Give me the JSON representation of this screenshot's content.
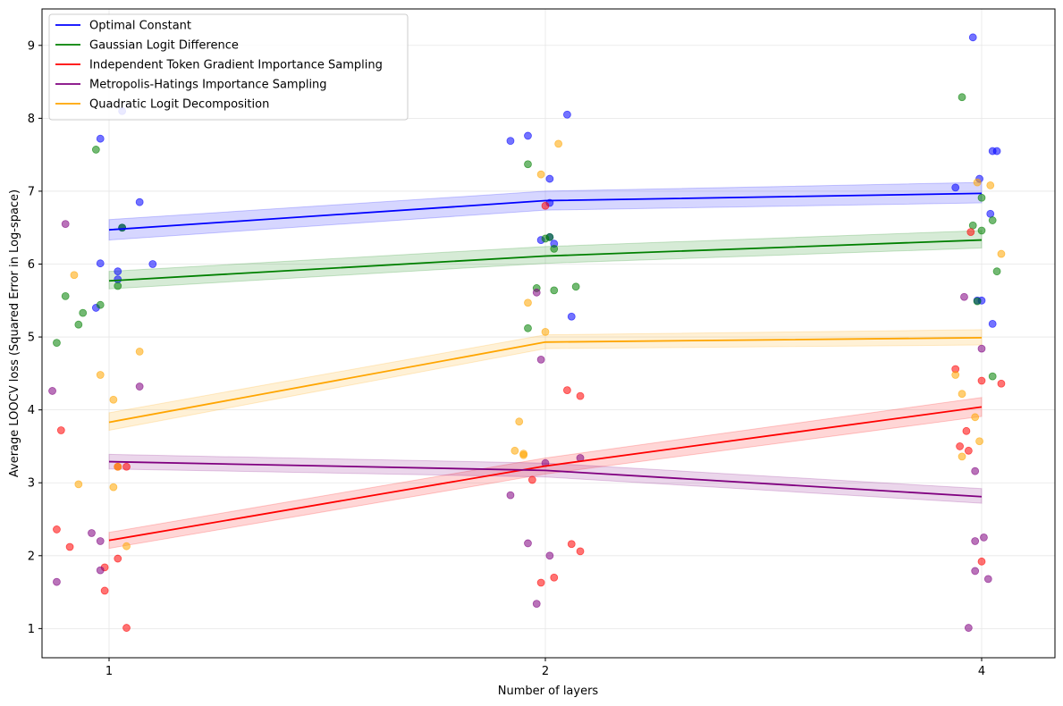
{
  "chart_data": {
    "type": "line",
    "xlabel": "Number of layers",
    "ylabel": "Average LOOCV loss (Squared Error in Log-space)",
    "x_ticks": [
      "1",
      "2",
      "4"
    ],
    "y_ticks": [
      1,
      2,
      3,
      4,
      5,
      6,
      7,
      8,
      9
    ],
    "ylim": [
      0.6,
      9.5
    ],
    "grid": true,
    "legend_position": "top-left",
    "series": [
      {
        "name": "Optimal Constant",
        "color": "#0000ff",
        "line": [
          6.47,
          6.87,
          6.97
        ],
        "band_low": [
          6.33,
          6.74,
          6.84
        ],
        "band_high": [
          6.61,
          7.0,
          7.12
        ],
        "points": [
          [
            0.98,
            7.72
          ],
          [
            1.03,
            8.1
          ],
          [
            1.02,
            5.9
          ],
          [
            1.02,
            5.79
          ],
          [
            0.98,
            6.01
          ],
          [
            0.97,
            5.4
          ],
          [
            1.07,
            6.85
          ],
          [
            1.1,
            6.0
          ],
          [
            1.03,
            6.5
          ],
          [
            1.92,
            7.69
          ],
          [
            1.96,
            7.76
          ],
          [
            2.05,
            8.05
          ],
          [
            1.99,
            6.33
          ],
          [
            2.01,
            6.37
          ],
          [
            2.01,
            6.84
          ],
          [
            2.01,
            7.17
          ],
          [
            2.02,
            6.28
          ],
          [
            2.06,
            5.28
          ],
          [
            3.96,
            9.11
          ],
          [
            3.88,
            7.05
          ],
          [
            3.98,
            5.5
          ],
          [
            3.99,
            7.17
          ],
          [
            4.0,
            5.5
          ],
          [
            4.04,
            6.69
          ],
          [
            4.05,
            7.55
          ],
          [
            4.07,
            7.55
          ],
          [
            4.05,
            5.18
          ]
        ]
      },
      {
        "name": "Gaussian Logit Difference",
        "color": "#008000",
        "line": [
          5.77,
          6.11,
          6.33
        ],
        "band_low": [
          5.66,
          6.01,
          6.22
        ],
        "band_high": [
          5.9,
          6.24,
          6.46
        ],
        "points": [
          [
            0.97,
            7.57
          ],
          [
            0.98,
            5.44
          ],
          [
            0.9,
            5.56
          ],
          [
            0.93,
            5.17
          ],
          [
            0.94,
            5.33
          ],
          [
            1.02,
            5.7
          ],
          [
            1.03,
            6.5
          ],
          [
            0.88,
            4.92
          ],
          [
            1.96,
            7.37
          ],
          [
            1.98,
            5.67
          ],
          [
            1.96,
            5.12
          ],
          [
            2.0,
            6.35
          ],
          [
            2.02,
            6.21
          ],
          [
            2.02,
            5.64
          ],
          [
            2.07,
            5.69
          ],
          [
            2.01,
            6.37
          ],
          [
            3.91,
            8.29
          ],
          [
            3.96,
            6.53
          ],
          [
            4.0,
            6.91
          ],
          [
            4.05,
            6.6
          ],
          [
            4.07,
            5.9
          ],
          [
            4.0,
            6.46
          ],
          [
            4.05,
            4.46
          ],
          [
            3.98,
            5.49
          ]
        ]
      },
      {
        "name": "Independent Token Gradient Importance Sampling",
        "color": "#ff0000",
        "line": [
          2.21,
          3.23,
          4.04
        ],
        "band_low": [
          2.1,
          3.12,
          3.91
        ],
        "band_high": [
          2.32,
          3.34,
          4.17
        ],
        "points": [
          [
            0.89,
            3.72
          ],
          [
            0.88,
            2.36
          ],
          [
            0.91,
            2.12
          ],
          [
            0.99,
            1.84
          ],
          [
            0.99,
            1.52
          ],
          [
            1.02,
            1.96
          ],
          [
            1.04,
            1.01
          ],
          [
            1.02,
            3.22
          ],
          [
            1.04,
            3.22
          ],
          [
            1.97,
            3.04
          ],
          [
            1.99,
            1.63
          ],
          [
            2.02,
            1.7
          ],
          [
            2.05,
            4.27
          ],
          [
            2.08,
            4.19
          ],
          [
            2.06,
            2.16
          ],
          [
            2.08,
            2.06
          ],
          [
            2.0,
            6.8
          ],
          [
            3.88,
            4.56
          ],
          [
            3.9,
            3.5
          ],
          [
            3.93,
            3.71
          ],
          [
            3.94,
            3.44
          ],
          [
            4.0,
            1.92
          ],
          [
            4.0,
            4.4
          ],
          [
            4.09,
            4.36
          ],
          [
            3.95,
            6.44
          ]
        ]
      },
      {
        "name": "Metropolis-Hatings Importance Sampling",
        "color": "#800080",
        "line": [
          3.29,
          3.17,
          2.81
        ],
        "band_low": [
          3.19,
          3.08,
          2.72
        ],
        "band_high": [
          3.39,
          3.27,
          2.92
        ],
        "points": [
          [
            0.87,
            4.26
          ],
          [
            0.88,
            1.64
          ],
          [
            0.9,
            6.55
          ],
          [
            0.96,
            2.31
          ],
          [
            0.98,
            2.2
          ],
          [
            0.98,
            1.8
          ],
          [
            1.07,
            4.32
          ],
          [
            1.92,
            2.83
          ],
          [
            1.96,
            2.17
          ],
          [
            1.98,
            5.61
          ],
          [
            1.98,
            1.34
          ],
          [
            1.99,
            4.69
          ],
          [
            2.0,
            3.27
          ],
          [
            2.01,
            2.0
          ],
          [
            2.08,
            3.34
          ],
          [
            3.92,
            5.55
          ],
          [
            3.97,
            3.16
          ],
          [
            3.97,
            1.79
          ],
          [
            3.97,
            2.2
          ],
          [
            4.01,
            2.25
          ],
          [
            3.94,
            1.01
          ],
          [
            4.0,
            4.84
          ],
          [
            4.03,
            1.68
          ]
        ]
      },
      {
        "name": "Quadratic Logit Decomposition",
        "color": "#ffa500",
        "line": [
          3.83,
          4.93,
          4.99
        ],
        "band_low": [
          3.72,
          4.84,
          4.89
        ],
        "band_high": [
          3.96,
          5.03,
          5.1
        ],
        "points": [
          [
            0.92,
            5.85
          ],
          [
            0.93,
            2.98
          ],
          [
            0.98,
            4.48
          ],
          [
            1.01,
            4.14
          ],
          [
            1.01,
            2.94
          ],
          [
            1.02,
            3.22
          ],
          [
            1.04,
            2.13
          ],
          [
            1.07,
            4.8
          ],
          [
            1.94,
            3.84
          ],
          [
            1.95,
            3.4
          ],
          [
            1.95,
            3.38
          ],
          [
            1.93,
            3.44
          ],
          [
            1.96,
            5.47
          ],
          [
            1.99,
            7.23
          ],
          [
            2.0,
            5.07
          ],
          [
            2.03,
            7.65
          ],
          [
            3.88,
            4.48
          ],
          [
            3.91,
            3.36
          ],
          [
            3.91,
            4.22
          ],
          [
            3.97,
            3.9
          ],
          [
            3.98,
            7.12
          ],
          [
            3.99,
            3.57
          ],
          [
            4.04,
            7.08
          ],
          [
            4.09,
            6.14
          ]
        ]
      }
    ]
  }
}
